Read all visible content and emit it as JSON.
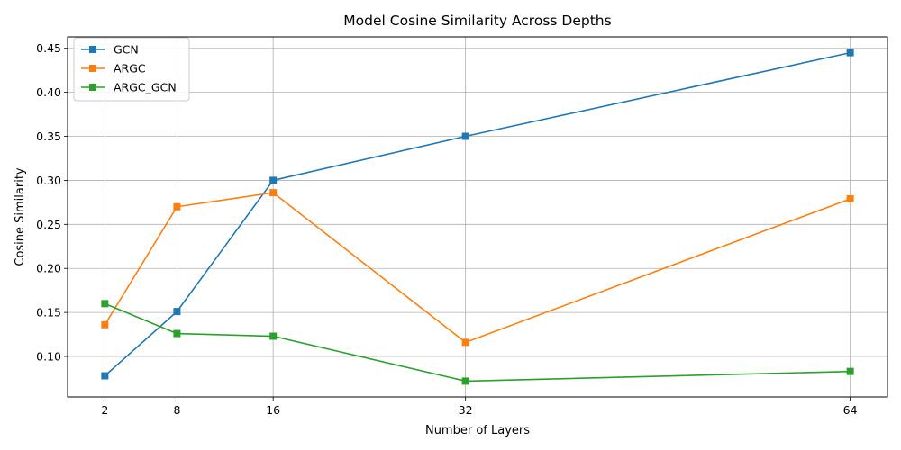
{
  "chart_data": {
    "type": "line",
    "title": "Model Cosine Similarity Across Depths",
    "xlabel": "Number of Layers",
    "ylabel": "Cosine Similarity",
    "x": [
      2,
      8,
      16,
      32,
      64
    ],
    "xticks": [
      2,
      8,
      16,
      32,
      64
    ],
    "yticks": [
      0.1,
      0.15,
      0.2,
      0.25,
      0.3,
      0.35,
      0.4,
      0.45
    ],
    "ytick_labels": [
      "0.10",
      "0.15",
      "0.20",
      "0.25",
      "0.30",
      "0.35",
      "0.40",
      "0.45"
    ],
    "xlim": [
      -1.1,
      67.1
    ],
    "ylim": [
      0.054,
      0.463
    ],
    "grid": true,
    "legend_position": "upper-left",
    "marker": "square",
    "series": [
      {
        "name": "GCN",
        "color": "#1f77b4",
        "values": [
          0.078,
          0.151,
          0.3,
          0.35,
          0.445
        ]
      },
      {
        "name": "ARGC",
        "color": "#ff7f0e",
        "values": [
          0.136,
          0.27,
          0.286,
          0.116,
          0.279
        ]
      },
      {
        "name": "ARGC_GCN",
        "color": "#2ca02c",
        "values": [
          0.16,
          0.126,
          0.123,
          0.072,
          0.083
        ]
      }
    ]
  }
}
